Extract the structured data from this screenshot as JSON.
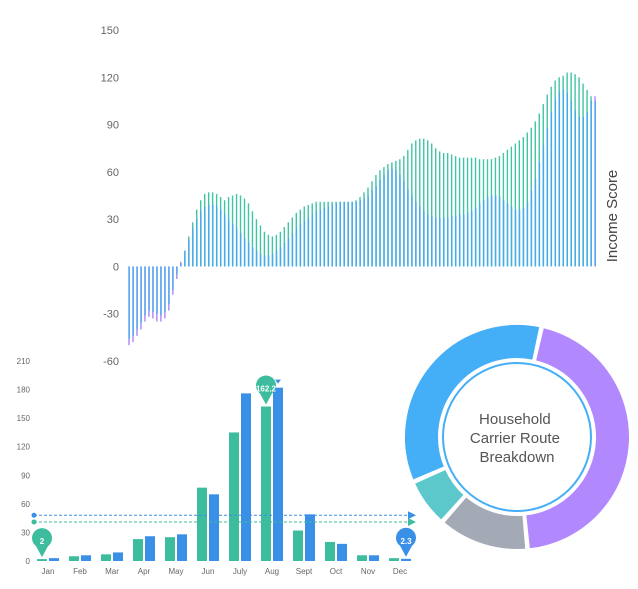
{
  "colors": {
    "teal": "#3fc4a4",
    "purple": "#b084f5",
    "blue": "#4aa8f0",
    "bar_teal": "#3dbd9e",
    "bar_blue": "#3a8fe6",
    "donut_purple": "#b288ff",
    "donut_blue": "#44aef7",
    "donut_gray": "#a3aab6",
    "donut_teal": "#5cc8cc"
  },
  "chart_data": [
    {
      "type": "bar",
      "ylabel": "Income Score",
      "ylim": [
        -60,
        150
      ],
      "yticks": [
        "150",
        "120",
        "90",
        "60",
        "30",
        "0",
        "-30",
        "-60"
      ],
      "grid": false,
      "x": [
        1,
        2,
        3,
        4,
        5,
        6,
        7,
        8,
        9,
        10,
        11,
        12,
        13,
        14,
        15,
        16,
        17,
        18,
        19,
        20,
        21,
        22,
        23,
        24,
        25,
        26,
        27,
        28,
        29,
        30,
        31,
        32,
        33,
        34,
        35,
        36,
        37,
        38,
        39,
        40,
        41,
        42,
        43,
        44,
        45,
        46,
        47,
        48,
        49,
        50,
        51,
        52,
        53,
        54,
        55,
        56,
        57,
        58,
        59,
        60,
        61,
        62,
        63,
        64,
        65,
        66,
        67,
        68,
        69,
        70,
        71,
        72,
        73,
        74,
        75,
        76,
        77,
        78,
        79,
        80,
        81,
        82,
        83,
        84,
        85,
        86,
        87,
        88,
        89,
        90,
        91,
        92,
        93,
        94,
        95,
        96,
        97,
        98,
        99,
        100,
        101,
        102,
        103,
        104,
        105,
        106,
        107,
        108,
        109,
        110,
        111,
        112,
        113,
        114,
        115,
        116,
        117,
        118
      ],
      "series": [
        {
          "values": [
            -50,
            -48,
            -44,
            -40,
            -35,
            -32,
            -33,
            -35,
            -35,
            -33,
            -28,
            -18,
            -8,
            2,
            10,
            19,
            28,
            36,
            42,
            46,
            47,
            47,
            46,
            44,
            42,
            44,
            45,
            46,
            45,
            43,
            40,
            35,
            30,
            26,
            22,
            20,
            19,
            20,
            22,
            25,
            28,
            31,
            34,
            36,
            38,
            39,
            40,
            41,
            41,
            41,
            41,
            41,
            41,
            41,
            41,
            41,
            41,
            42,
            44,
            47,
            50,
            54,
            58,
            61,
            63,
            65,
            66,
            67,
            68,
            70,
            74,
            78,
            80,
            81,
            81,
            80,
            78,
            75,
            73,
            72,
            72,
            71,
            70,
            69,
            69,
            69,
            69,
            69,
            68,
            68,
            68,
            68,
            69,
            70,
            72,
            74,
            76,
            78,
            80,
            82,
            85,
            88,
            92,
            97,
            103,
            109,
            114,
            118,
            120,
            121,
            123,
            123,
            122,
            120,
            116,
            112,
            108,
            105
          ]
        },
        {
          "values": [
            -46,
            -44,
            -40,
            -36,
            -31,
            -28,
            -29,
            -30,
            -31,
            -29,
            -24,
            -15,
            -5,
            3,
            10,
            17,
            24,
            30,
            35,
            38,
            39,
            39,
            38,
            36,
            33,
            30,
            27,
            24,
            21,
            18,
            15,
            12,
            10,
            8,
            7,
            7,
            8,
            10,
            12,
            15,
            18,
            21,
            24,
            27,
            29,
            31,
            33,
            35,
            36,
            37,
            38,
            39,
            40,
            41,
            41,
            41,
            41,
            41,
            42,
            43,
            45,
            48,
            51,
            55,
            58,
            61,
            62,
            61,
            58,
            54,
            49,
            45,
            41,
            38,
            35,
            33,
            32,
            31,
            31,
            31,
            31,
            32,
            32,
            33,
            33,
            34,
            35,
            37,
            40,
            42,
            44,
            45,
            45,
            44,
            42,
            40,
            38,
            36,
            36,
            37,
            41,
            48,
            56,
            66,
            77,
            88,
            98,
            106,
            111,
            112,
            110,
            105,
            99,
            95,
            95,
            98,
            105,
            108
          ]
        }
      ]
    },
    {
      "type": "bar",
      "categories": [
        "Jan",
        "Feb",
        "Mar",
        "Apr",
        "May",
        "Jun",
        "July",
        "Aug",
        "Sept",
        "Oct",
        "Nov",
        "Dec"
      ],
      "ylim": [
        0,
        210
      ],
      "yticks": [
        "210",
        "180",
        "150",
        "120",
        "90",
        "60",
        "30",
        "0"
      ],
      "series": [
        {
          "values": [
            2,
            5,
            7,
            23,
            25,
            77,
            135,
            162.2,
            32,
            20,
            6,
            3
          ]
        },
        {
          "values": [
            3,
            6,
            9,
            26,
            28,
            70,
            176,
            182,
            49,
            18,
            6,
            2.3
          ]
        }
      ],
      "reference_lines": [
        48,
        41
      ],
      "annotations": [
        "2",
        "162.2",
        "2.3"
      ]
    },
    {
      "type": "pie",
      "title": "Household Carrier Route Breakdown",
      "values": [
        45,
        13,
        7,
        35
      ]
    }
  ]
}
